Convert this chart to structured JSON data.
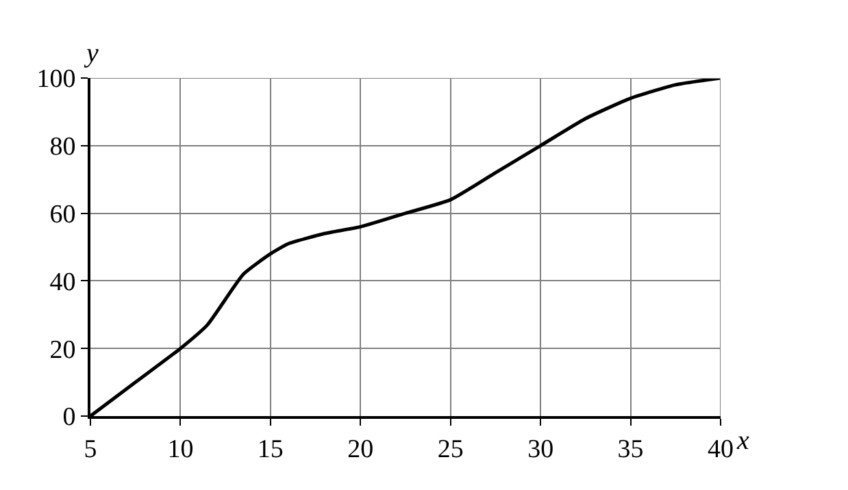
{
  "chart_data": {
    "type": "line",
    "xlabel": "x",
    "ylabel": "y",
    "x": [
      5,
      7.5,
      10,
      11.5,
      13.5,
      15,
      16,
      18,
      20,
      22.5,
      25,
      27.5,
      30,
      32.5,
      35,
      37.5,
      40
    ],
    "series": [
      {
        "color": "#000000",
        "values": [
          0,
          10,
          20,
          27,
          42,
          48,
          51,
          54,
          56,
          60,
          64,
          72,
          80,
          88,
          94,
          98,
          100
        ]
      }
    ],
    "xlim": [
      5,
      40
    ],
    "ylim": [
      0,
      100
    ],
    "xticks": [
      5,
      10,
      15,
      20,
      25,
      30,
      35,
      40
    ],
    "yticks": [
      0,
      20,
      40,
      60,
      80,
      100
    ],
    "grid": true,
    "legend": false,
    "marker": "none",
    "line_style": "solid"
  }
}
